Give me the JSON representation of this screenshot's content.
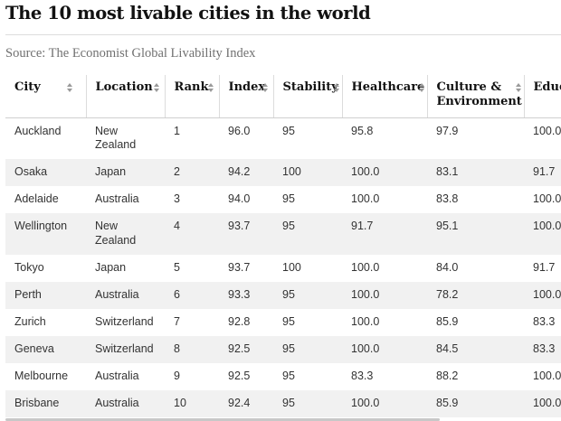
{
  "title": "The 10 most livable cities in the world",
  "source": "Source: The Economist Global Livability Index",
  "table": {
    "columns": [
      "City",
      "Location",
      "Rank",
      "Index",
      "Stability",
      "Healthcare",
      "Culture & Environment",
      "Educa"
    ],
    "rows": [
      [
        "Auckland",
        "New Zealand",
        "1",
        "96.0",
        "95",
        "95.8",
        "97.9",
        "100.0"
      ],
      [
        "Osaka",
        "Japan",
        "2",
        "94.2",
        "100",
        "100.0",
        "83.1",
        "91.7"
      ],
      [
        "Adelaide",
        "Australia",
        "3",
        "94.0",
        "95",
        "100.0",
        "83.8",
        "100.0"
      ],
      [
        "Wellington",
        "New Zealand",
        "4",
        "93.7",
        "95",
        "91.7",
        "95.1",
        "100.0"
      ],
      [
        "Tokyo",
        "Japan",
        "5",
        "93.7",
        "100",
        "100.0",
        "84.0",
        "91.7"
      ],
      [
        "Perth",
        "Australia",
        "6",
        "93.3",
        "95",
        "100.0",
        "78.2",
        "100.0"
      ],
      [
        "Zurich",
        "Switzerland",
        "7",
        "92.8",
        "95",
        "100.0",
        "85.9",
        "83.3"
      ],
      [
        "Geneva",
        "Switzerland",
        "8",
        "92.5",
        "95",
        "100.0",
        "84.5",
        "83.3"
      ],
      [
        "Melbourne",
        "Australia",
        "9",
        "92.5",
        "95",
        "83.3",
        "88.2",
        "100.0"
      ],
      [
        "Brisbane",
        "Australia",
        "10",
        "92.4",
        "95",
        "100.0",
        "85.9",
        "100.0"
      ]
    ]
  },
  "colors": {
    "title": "#121212",
    "source": "#707070",
    "row_stripe": "#f1f1f1",
    "sort_icon": "#9a9a9a"
  }
}
